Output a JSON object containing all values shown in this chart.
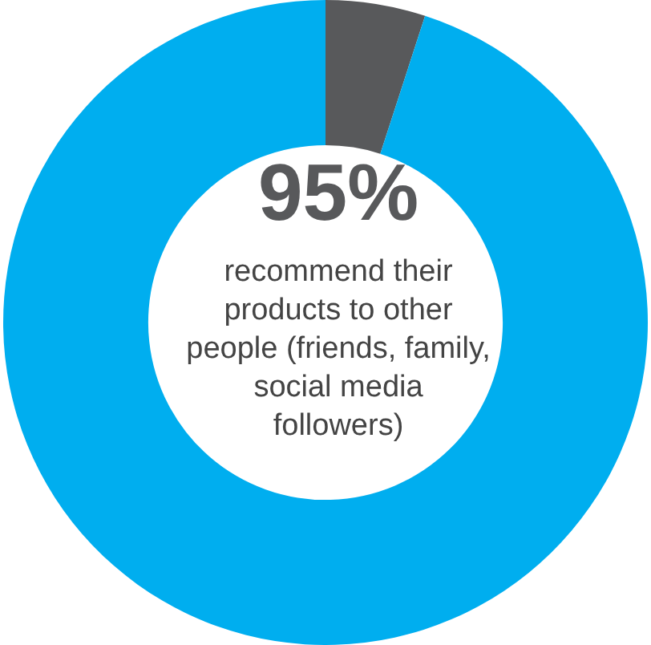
{
  "chart_data": {
    "type": "donut",
    "categories": [
      null,
      null
    ],
    "values": [
      5,
      95
    ],
    "colors": [
      "#58595b",
      "#00aeef"
    ],
    "value_labels": [
      null,
      "95%"
    ],
    "annotations": [
      "recommend their products to other people (friends, family, social media followers)"
    ],
    "legend": false
  }
}
